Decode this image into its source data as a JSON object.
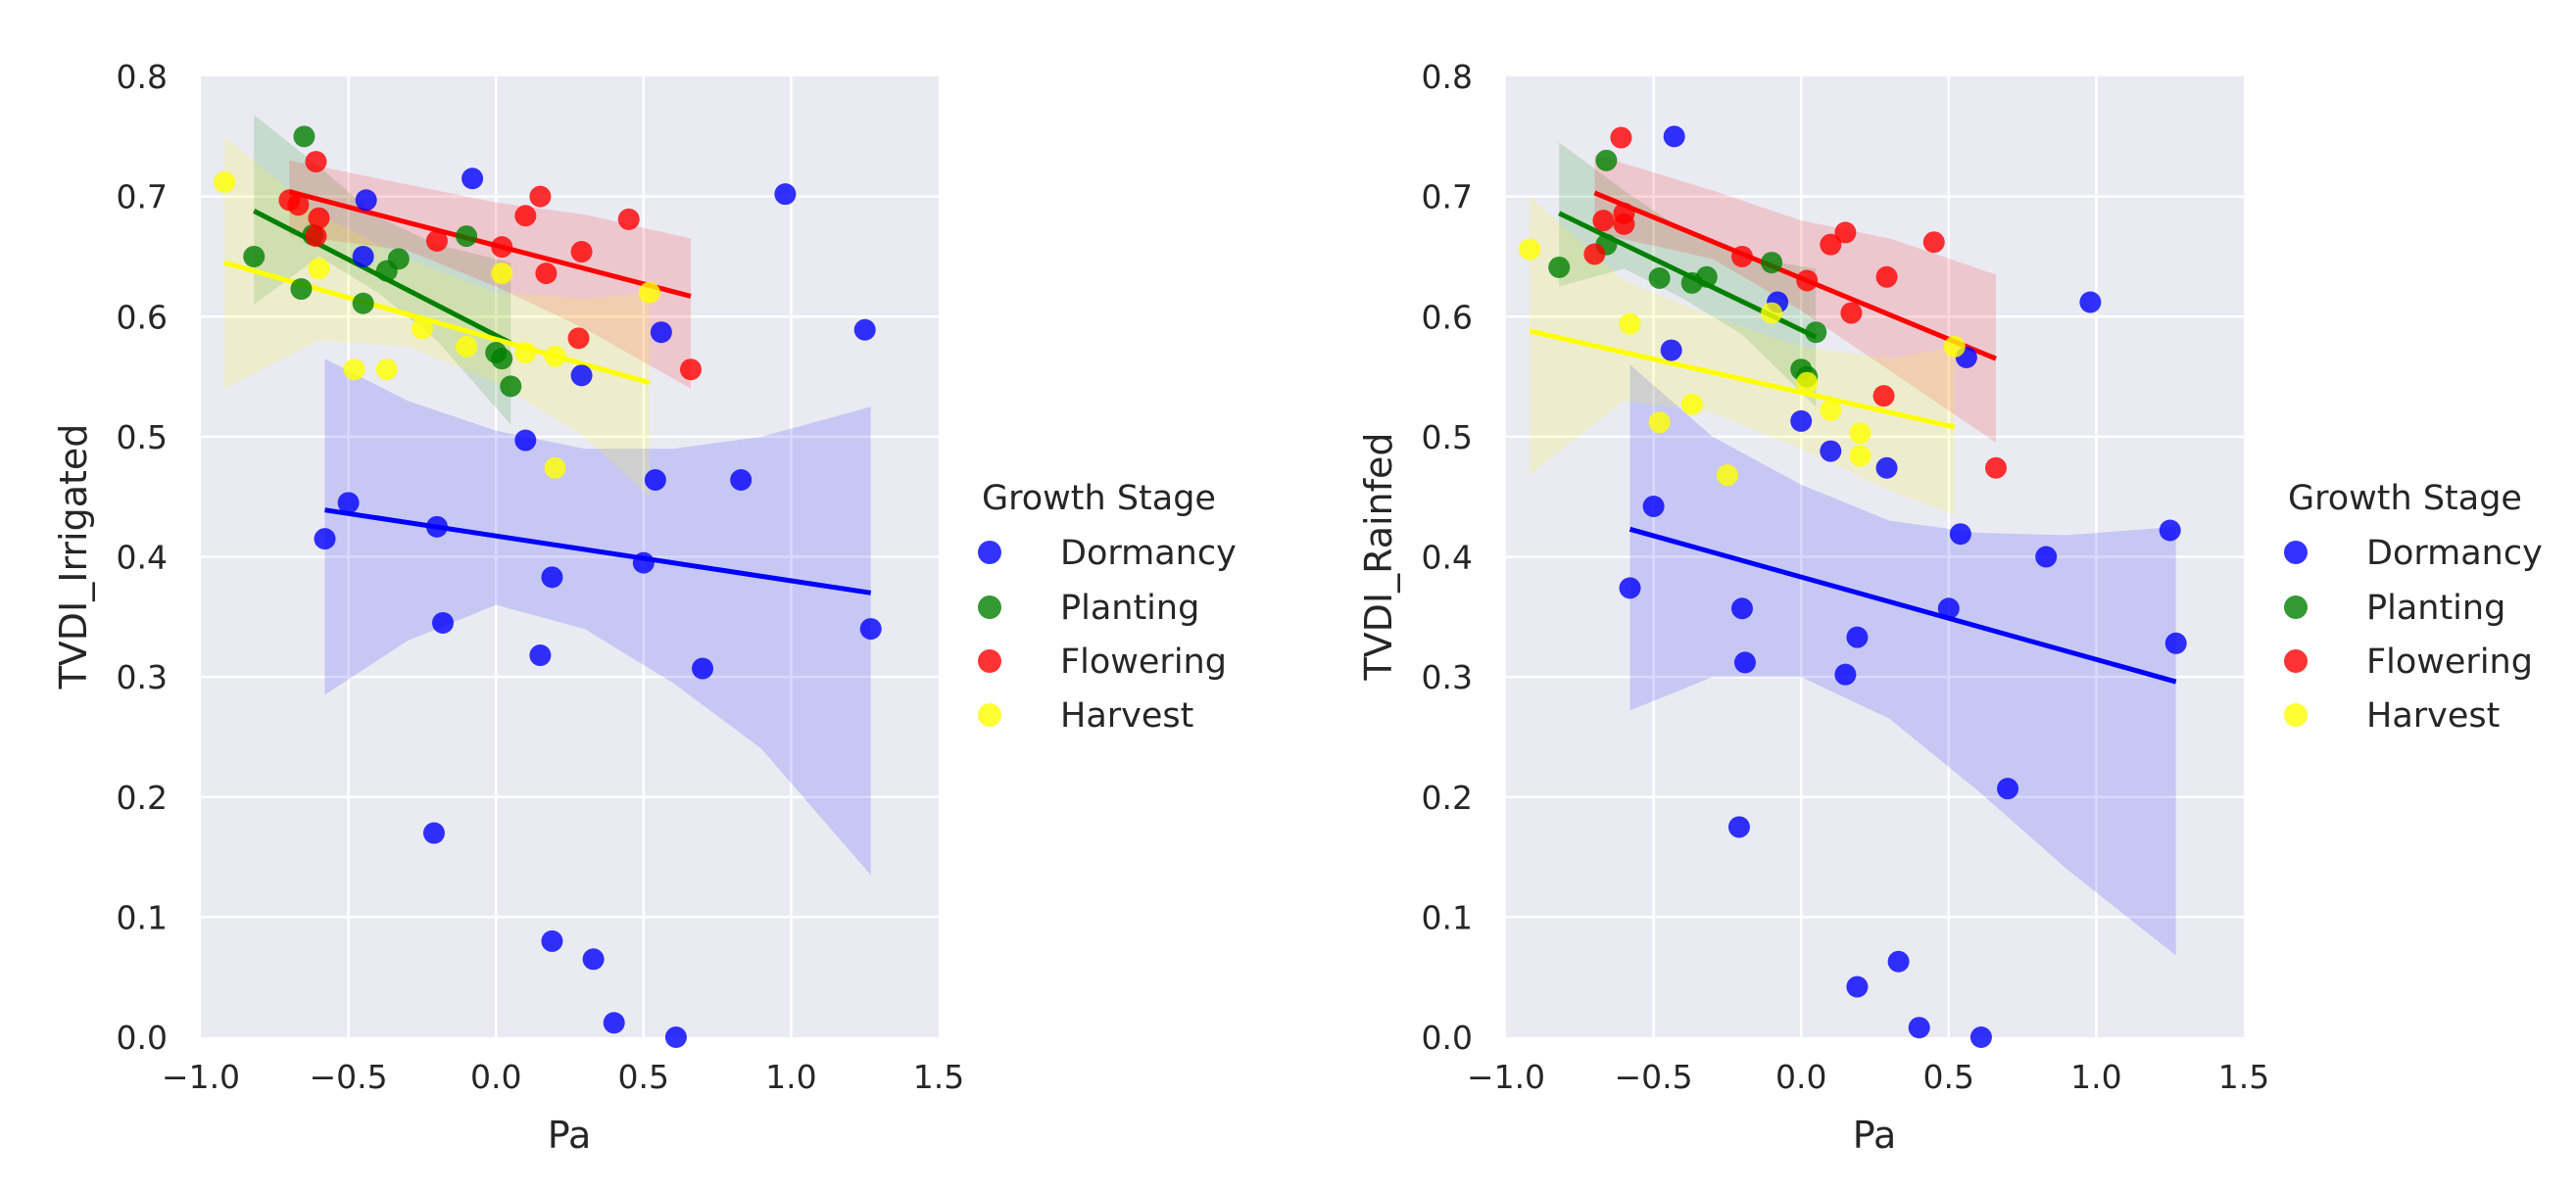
{
  "chart_data": [
    {
      "type": "scatter",
      "xlabel": "Pa",
      "ylabel": "TVDI_Irrigated",
      "xlim": [
        -1.0,
        1.5
      ],
      "ylim": [
        0.0,
        0.8
      ],
      "xticks": [
        "−1.0",
        "−0.5",
        "0.0",
        "0.5",
        "1.0",
        "1.5"
      ],
      "yticks": [
        "0.0",
        "0.1",
        "0.2",
        "0.3",
        "0.4",
        "0.5",
        "0.6",
        "0.7",
        "0.8"
      ],
      "grid": true,
      "legend": {
        "title": "Growth Stage",
        "placement": "right"
      },
      "series": [
        {
          "name": "Dormancy",
          "color": "#0000ff",
          "points": [
            [
              -0.58,
              0.415
            ],
            [
              -0.5,
              0.445
            ],
            [
              -0.2,
              0.425
            ],
            [
              -0.18,
              0.345
            ],
            [
              -0.21,
              0.17
            ],
            [
              -0.45,
              0.65
            ],
            [
              -0.44,
              0.697
            ],
            [
              -0.08,
              0.715
            ],
            [
              0.1,
              0.497
            ],
            [
              0.15,
              0.318
            ],
            [
              0.19,
              0.383
            ],
            [
              0.19,
              0.08
            ],
            [
              0.29,
              0.551
            ],
            [
              0.33,
              0.065
            ],
            [
              0.4,
              0.012
            ],
            [
              0.5,
              0.395
            ],
            [
              0.54,
              0.464
            ],
            [
              0.56,
              0.587
            ],
            [
              0.61,
              0.0
            ],
            [
              0.7,
              0.307
            ],
            [
              0.83,
              0.464
            ],
            [
              0.98,
              0.702
            ],
            [
              1.25,
              0.589
            ],
            [
              1.27,
              0.34
            ]
          ],
          "fit": {
            "x": [
              -0.58,
              1.27
            ],
            "y": [
              0.439,
              0.37
            ]
          },
          "ci": {
            "x": [
              -0.58,
              -0.3,
              0.0,
              0.3,
              0.6,
              0.9,
              1.27
            ],
            "upper": [
              0.565,
              0.53,
              0.505,
              0.49,
              0.49,
              0.5,
              0.525
            ],
            "lower": [
              0.285,
              0.33,
              0.36,
              0.34,
              0.295,
              0.24,
              0.135
            ]
          }
        },
        {
          "name": "Planting",
          "color": "#008000",
          "points": [
            [
              -0.82,
              0.65
            ],
            [
              -0.65,
              0.75
            ],
            [
              -0.66,
              0.623
            ],
            [
              -0.62,
              0.668
            ],
            [
              -0.45,
              0.611
            ],
            [
              -0.37,
              0.638
            ],
            [
              -0.33,
              0.648
            ],
            [
              -0.1,
              0.667
            ],
            [
              0.0,
              0.57
            ],
            [
              0.02,
              0.565
            ],
            [
              0.05,
              0.542
            ]
          ],
          "fit": {
            "x": [
              -0.82,
              0.05
            ],
            "y": [
              0.688,
              0.578
            ]
          },
          "ci": {
            "x": [
              -0.82,
              -0.6,
              -0.4,
              -0.2,
              0.05
            ],
            "upper": [
              0.768,
              0.725,
              0.683,
              0.66,
              0.645
            ],
            "lower": [
              0.61,
              0.65,
              0.62,
              0.58,
              0.51
            ]
          }
        },
        {
          "name": "Flowering",
          "color": "#ff0000",
          "points": [
            [
              -0.7,
              0.697
            ],
            [
              -0.67,
              0.693
            ],
            [
              -0.61,
              0.729
            ],
            [
              -0.6,
              0.682
            ],
            [
              -0.61,
              0.667
            ],
            [
              -0.2,
              0.663
            ],
            [
              0.02,
              0.658
            ],
            [
              0.1,
              0.684
            ],
            [
              0.15,
              0.7
            ],
            [
              0.17,
              0.636
            ],
            [
              0.28,
              0.582
            ],
            [
              0.29,
              0.654
            ],
            [
              0.45,
              0.681
            ],
            [
              0.66,
              0.556
            ]
          ],
          "fit": {
            "x": [
              -0.7,
              0.66
            ],
            "y": [
              0.704,
              0.617
            ]
          },
          "ci": {
            "x": [
              -0.7,
              -0.3,
              0.0,
              0.3,
              0.66
            ],
            "upper": [
              0.73,
              0.71,
              0.695,
              0.685,
              0.665
            ],
            "lower": [
              0.668,
              0.655,
              0.625,
              0.59,
              0.54
            ]
          }
        },
        {
          "name": "Harvest",
          "color": "#ffff00",
          "points": [
            [
              -0.92,
              0.712
            ],
            [
              -0.6,
              0.64
            ],
            [
              -0.48,
              0.556
            ],
            [
              -0.37,
              0.556
            ],
            [
              -0.25,
              0.59
            ],
            [
              -0.1,
              0.575
            ],
            [
              0.02,
              0.636
            ],
            [
              0.1,
              0.57
            ],
            [
              0.2,
              0.567
            ],
            [
              0.2,
              0.474
            ],
            [
              0.52,
              0.62
            ]
          ],
          "fit": {
            "x": [
              -0.92,
              0.52
            ],
            "y": [
              0.645,
              0.545
            ]
          },
          "ci": {
            "x": [
              -0.92,
              -0.6,
              -0.3,
              0.0,
              0.3,
              0.52
            ],
            "upper": [
              0.75,
              0.685,
              0.648,
              0.62,
              0.615,
              0.62
            ],
            "lower": [
              0.54,
              0.58,
              0.575,
              0.545,
              0.5,
              0.45
            ]
          }
        }
      ]
    },
    {
      "type": "scatter",
      "xlabel": "Pa",
      "ylabel": "TVDI_Rainfed",
      "xlim": [
        -1.0,
        1.5
      ],
      "ylim": [
        0.0,
        0.8
      ],
      "xticks": [
        "−1.0",
        "−0.5",
        "0.0",
        "0.5",
        "1.0",
        "1.5"
      ],
      "yticks": [
        "0.0",
        "0.1",
        "0.2",
        "0.3",
        "0.4",
        "0.5",
        "0.6",
        "0.7",
        "0.8"
      ],
      "grid": true,
      "legend": {
        "title": "Growth Stage",
        "placement": "right"
      },
      "series": [
        {
          "name": "Dormancy",
          "color": "#0000ff",
          "points": [
            [
              -0.58,
              0.374
            ],
            [
              -0.5,
              0.442
            ],
            [
              -0.44,
              0.572
            ],
            [
              -0.43,
              0.75
            ],
            [
              -0.2,
              0.357
            ],
            [
              -0.19,
              0.312
            ],
            [
              -0.21,
              0.175
            ],
            [
              -0.08,
              0.612
            ],
            [
              0.0,
              0.513
            ],
            [
              0.1,
              0.488
            ],
            [
              0.15,
              0.302
            ],
            [
              0.19,
              0.333
            ],
            [
              0.19,
              0.042
            ],
            [
              0.29,
              0.474
            ],
            [
              0.33,
              0.063
            ],
            [
              0.4,
              0.008
            ],
            [
              0.5,
              0.357
            ],
            [
              0.54,
              0.419
            ],
            [
              0.56,
              0.566
            ],
            [
              0.61,
              0.0
            ],
            [
              0.7,
              0.207
            ],
            [
              0.83,
              0.4
            ],
            [
              0.98,
              0.612
            ],
            [
              1.25,
              0.422
            ],
            [
              1.27,
              0.328
            ]
          ],
          "fit": {
            "x": [
              -0.58,
              1.27
            ],
            "y": [
              0.423,
              0.296
            ]
          },
          "ci": {
            "x": [
              -0.58,
              -0.3,
              0.0,
              0.3,
              0.6,
              0.9,
              1.27
            ],
            "upper": [
              0.56,
              0.5,
              0.46,
              0.43,
              0.42,
              0.418,
              0.425
            ],
            "lower": [
              0.272,
              0.3,
              0.3,
              0.265,
              0.205,
              0.14,
              0.068
            ]
          }
        },
        {
          "name": "Planting",
          "color": "#008000",
          "points": [
            [
              -0.82,
              0.641
            ],
            [
              -0.66,
              0.73
            ],
            [
              -0.66,
              0.66
            ],
            [
              -0.48,
              0.632
            ],
            [
              -0.37,
              0.628
            ],
            [
              -0.32,
              0.633
            ],
            [
              -0.1,
              0.645
            ],
            [
              0.0,
              0.556
            ],
            [
              0.02,
              0.55
            ],
            [
              0.05,
              0.587
            ]
          ],
          "fit": {
            "x": [
              -0.82,
              0.05
            ],
            "y": [
              0.686,
              0.583
            ]
          },
          "ci": {
            "x": [
              -0.82,
              -0.6,
              -0.4,
              -0.2,
              0.05
            ],
            "upper": [
              0.745,
              0.705,
              0.672,
              0.65,
              0.64
            ],
            "lower": [
              0.625,
              0.64,
              0.615,
              0.585,
              0.525
            ]
          }
        },
        {
          "name": "Flowering",
          "color": "#ff0000",
          "points": [
            [
              -0.7,
              0.652
            ],
            [
              -0.67,
              0.68
            ],
            [
              -0.61,
              0.749
            ],
            [
              -0.6,
              0.686
            ],
            [
              -0.6,
              0.677
            ],
            [
              -0.2,
              0.65
            ],
            [
              0.02,
              0.63
            ],
            [
              0.1,
              0.66
            ],
            [
              0.15,
              0.67
            ],
            [
              0.17,
              0.603
            ],
            [
              0.28,
              0.534
            ],
            [
              0.29,
              0.633
            ],
            [
              0.45,
              0.662
            ],
            [
              0.66,
              0.474
            ]
          ],
          "fit": {
            "x": [
              -0.7,
              0.66
            ],
            "y": [
              0.703,
              0.565
            ]
          },
          "ci": {
            "x": [
              -0.7,
              -0.3,
              0.0,
              0.3,
              0.66
            ],
            "upper": [
              0.735,
              0.705,
              0.68,
              0.665,
              0.635
            ],
            "lower": [
              0.67,
              0.648,
              0.605,
              0.555,
              0.495
            ]
          }
        },
        {
          "name": "Harvest",
          "color": "#ffff00",
          "points": [
            [
              -0.92,
              0.656
            ],
            [
              -0.58,
              0.594
            ],
            [
              -0.48,
              0.512
            ],
            [
              -0.37,
              0.527
            ],
            [
              -0.25,
              0.468
            ],
            [
              -0.1,
              0.603
            ],
            [
              0.02,
              0.545
            ],
            [
              0.1,
              0.522
            ],
            [
              0.2,
              0.503
            ],
            [
              0.2,
              0.484
            ],
            [
              0.52,
              0.575
            ]
          ],
          "fit": {
            "x": [
              -0.92,
              0.52
            ],
            "y": [
              0.588,
              0.508
            ]
          },
          "ci": {
            "x": [
              -0.92,
              -0.6,
              -0.3,
              0.0,
              0.3,
              0.52
            ],
            "upper": [
              0.7,
              0.63,
              0.6,
              0.575,
              0.565,
              0.575
            ],
            "lower": [
              0.468,
              0.53,
              0.52,
              0.49,
              0.455,
              0.435
            ]
          }
        }
      ]
    }
  ]
}
